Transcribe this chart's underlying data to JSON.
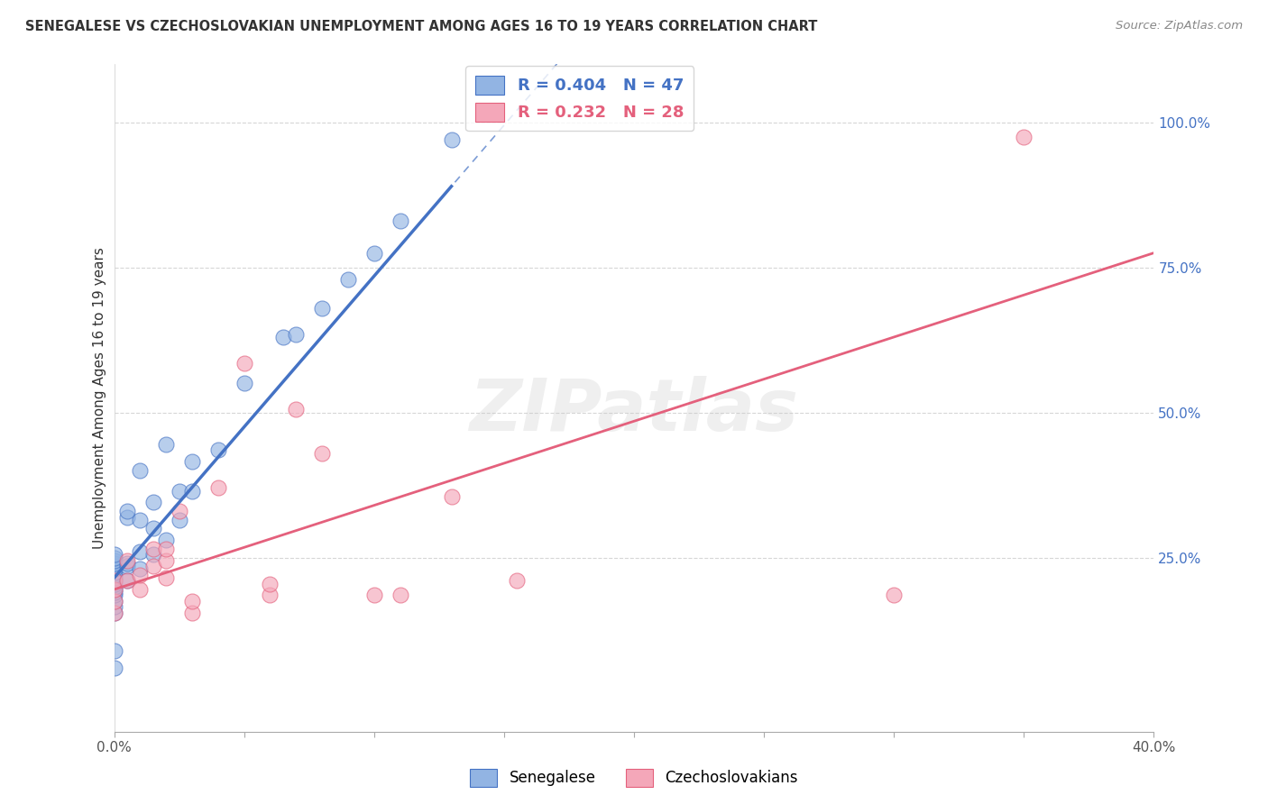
{
  "title": "SENEGALESE VS CZECHOSLOVAKIAN UNEMPLOYMENT AMONG AGES 16 TO 19 YEARS CORRELATION CHART",
  "source": "Source: ZipAtlas.com",
  "ylabel": "Unemployment Among Ages 16 to 19 years",
  "xlim": [
    0.0,
    0.4
  ],
  "ylim": [
    -0.05,
    1.1
  ],
  "x_ticks": [
    0.0,
    0.05,
    0.1,
    0.15,
    0.2,
    0.25,
    0.3,
    0.35,
    0.4
  ],
  "x_tick_labels": [
    "0.0%",
    "",
    "",
    "",
    "",
    "",
    "",
    "",
    "40.0%"
  ],
  "y_tick_labels_right": [
    "100.0%",
    "75.0%",
    "50.0%",
    "25.0%"
  ],
  "y_ticks_right": [
    1.0,
    0.75,
    0.5,
    0.25
  ],
  "blue_R": 0.404,
  "blue_N": 47,
  "pink_R": 0.232,
  "pink_N": 28,
  "blue_color": "#92b4e3",
  "pink_color": "#f4a7b9",
  "blue_line_color": "#4472C4",
  "pink_line_color": "#E4607C",
  "watermark": "ZIPatlas",
  "blue_scatter_x": [
    0.0,
    0.0,
    0.0,
    0.0,
    0.0,
    0.0,
    0.0,
    0.0,
    0.0,
    0.0,
    0.0,
    0.0,
    0.0,
    0.0,
    0.0,
    0.0,
    0.0,
    0.0,
    0.0,
    0.0,
    0.005,
    0.005,
    0.005,
    0.005,
    0.005,
    0.01,
    0.01,
    0.01,
    0.01,
    0.015,
    0.015,
    0.015,
    0.02,
    0.02,
    0.025,
    0.025,
    0.03,
    0.03,
    0.04,
    0.05,
    0.065,
    0.07,
    0.08,
    0.09,
    0.1,
    0.11,
    0.13
  ],
  "blue_scatter_y": [
    0.155,
    0.165,
    0.175,
    0.185,
    0.19,
    0.195,
    0.2,
    0.205,
    0.21,
    0.215,
    0.22,
    0.225,
    0.23,
    0.235,
    0.24,
    0.245,
    0.25,
    0.255,
    0.09,
    0.06,
    0.21,
    0.235,
    0.24,
    0.32,
    0.33,
    0.23,
    0.26,
    0.315,
    0.4,
    0.255,
    0.3,
    0.345,
    0.28,
    0.445,
    0.315,
    0.365,
    0.365,
    0.415,
    0.435,
    0.55,
    0.63,
    0.635,
    0.68,
    0.73,
    0.775,
    0.83,
    0.97
  ],
  "pink_scatter_x": [
    0.0,
    0.0,
    0.0,
    0.0,
    0.005,
    0.005,
    0.01,
    0.01,
    0.015,
    0.015,
    0.02,
    0.02,
    0.02,
    0.025,
    0.03,
    0.03,
    0.04,
    0.05,
    0.06,
    0.06,
    0.07,
    0.08,
    0.1,
    0.11,
    0.13,
    0.155,
    0.3,
    0.35
  ],
  "pink_scatter_y": [
    0.155,
    0.175,
    0.195,
    0.21,
    0.21,
    0.245,
    0.195,
    0.22,
    0.235,
    0.265,
    0.215,
    0.245,
    0.265,
    0.33,
    0.155,
    0.175,
    0.37,
    0.585,
    0.185,
    0.205,
    0.505,
    0.43,
    0.185,
    0.185,
    0.355,
    0.21,
    0.185,
    0.975
  ],
  "background_color": "#ffffff",
  "grid_color": "#cccccc",
  "blue_line_intercept": 0.215,
  "blue_line_slope": 5.2,
  "pink_line_intercept": 0.195,
  "pink_line_slope": 1.45
}
